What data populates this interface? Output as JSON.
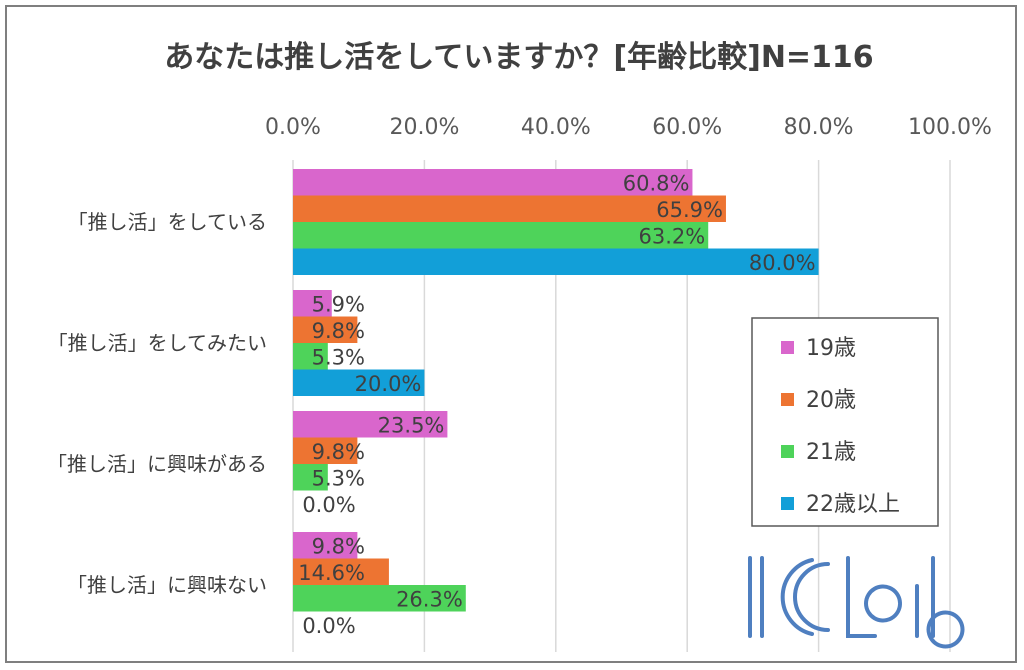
{
  "chart_data": {
    "type": "bar",
    "orientation": "horizontal",
    "title": "あなたは推し活をしていますか？[年齢比較]N=116",
    "xlabel": "",
    "ylabel": "",
    "xlim": [
      0,
      100
    ],
    "x_ticks": [
      "0.0%",
      "20.0%",
      "40.0%",
      "60.0%",
      "80.0%",
      "100.0%"
    ],
    "categories": [
      "「推し活」をしている",
      "「推し活」をしてみたい",
      "「推し活」に興味がある",
      "「推し活」に興味ない"
    ],
    "series": [
      {
        "name": "19歳",
        "color": "#d966cc",
        "values": [
          60.8,
          5.9,
          23.5,
          9.8
        ],
        "labels": [
          "60.8%",
          "5.9%",
          "23.5%",
          "9.8%"
        ]
      },
      {
        "name": "20歳",
        "color": "#ed7432",
        "values": [
          65.9,
          9.8,
          9.8,
          14.6
        ],
        "labels": [
          "65.9%",
          "9.8%",
          "9.8%",
          "14.6%"
        ]
      },
      {
        "name": "21歳",
        "color": "#4ed35a",
        "values": [
          63.2,
          5.3,
          5.3,
          26.3
        ],
        "labels": [
          "63.2%",
          "5.3%",
          "5.3%",
          "26.3%"
        ]
      },
      {
        "name": "22歳以上",
        "color": "#129fd8",
        "values": [
          80.0,
          20.0,
          0.0,
          0.0
        ],
        "labels": [
          "80.0%",
          "20.0%",
          "0.0%",
          "0.0%"
        ]
      }
    ],
    "grid": true,
    "legend_position": "right"
  },
  "logo": {
    "text": "IICLab",
    "color": "#4f7fc0"
  }
}
